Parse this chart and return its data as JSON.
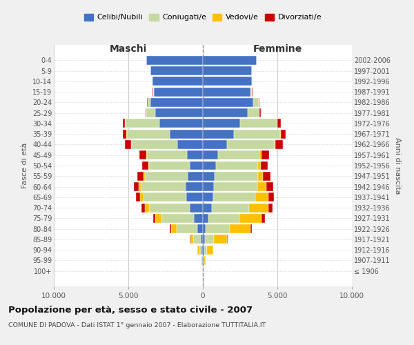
{
  "age_groups": [
    "100+",
    "95-99",
    "90-94",
    "85-89",
    "80-84",
    "75-79",
    "70-74",
    "65-69",
    "60-64",
    "55-59",
    "50-54",
    "45-49",
    "40-44",
    "35-39",
    "30-34",
    "25-29",
    "20-24",
    "15-19",
    "10-14",
    "5-9",
    "0-4"
  ],
  "birth_years": [
    "≤ 1906",
    "1907-1911",
    "1912-1916",
    "1917-1921",
    "1922-1926",
    "1927-1931",
    "1932-1936",
    "1937-1941",
    "1942-1946",
    "1947-1951",
    "1952-1956",
    "1957-1961",
    "1962-1966",
    "1967-1971",
    "1972-1976",
    "1977-1981",
    "1982-1986",
    "1987-1991",
    "1992-1996",
    "1997-2001",
    "2002-2006"
  ],
  "maschi": {
    "celibi": [
      20,
      60,
      100,
      150,
      350,
      600,
      900,
      1100,
      1150,
      1000,
      900,
      1050,
      1700,
      2200,
      2900,
      3200,
      3500,
      3300,
      3400,
      3500,
      3800
    ],
    "coniugati": [
      10,
      40,
      150,
      500,
      1400,
      2200,
      2700,
      2900,
      3000,
      2900,
      2700,
      2700,
      3100,
      2900,
      2300,
      600,
      200,
      50,
      20,
      10,
      5
    ],
    "vedovi": [
      5,
      30,
      100,
      200,
      400,
      400,
      300,
      200,
      150,
      100,
      80,
      50,
      30,
      20,
      10,
      5,
      5,
      0,
      0,
      0,
      0
    ],
    "divorziati": [
      2,
      5,
      10,
      20,
      80,
      150,
      200,
      280,
      350,
      400,
      400,
      450,
      400,
      250,
      150,
      50,
      30,
      10,
      5,
      0,
      0
    ]
  },
  "femmine": {
    "nubili": [
      20,
      60,
      100,
      130,
      200,
      350,
      600,
      700,
      750,
      800,
      900,
      1000,
      1600,
      2100,
      2500,
      3000,
      3400,
      3200,
      3300,
      3300,
      3600
    ],
    "coniugate": [
      10,
      40,
      200,
      600,
      1600,
      2100,
      2500,
      2800,
      2900,
      2900,
      2800,
      2800,
      3200,
      3100,
      2500,
      800,
      350,
      100,
      30,
      10,
      5
    ],
    "vedove": [
      20,
      100,
      400,
      900,
      1400,
      1500,
      1300,
      900,
      600,
      350,
      200,
      150,
      80,
      50,
      20,
      5,
      5,
      0,
      0,
      0,
      0
    ],
    "divorziate": [
      2,
      5,
      10,
      20,
      100,
      200,
      280,
      380,
      450,
      480,
      450,
      500,
      500,
      300,
      200,
      80,
      50,
      15,
      5,
      0,
      0
    ]
  },
  "colors": {
    "celibi": "#4472c4",
    "coniugati": "#c5d9a0",
    "vedovi": "#ffc000",
    "divorziati": "#cc0000"
  },
  "title": "Popolazione per età, sesso e stato civile - 2007",
  "subtitle": "COMUNE DI PADOVA - Dati ISTAT 1° gennaio 2007 - Elaborazione TUTTITALIA.IT",
  "xlabel_left": "Maschi",
  "xlabel_right": "Femmine",
  "ylabel_left": "Fasce di età",
  "ylabel_right": "Anni di nascita",
  "xlim": 10000,
  "xtick_labels": [
    "10.000",
    "5.000",
    "0",
    "5.000",
    "10.000"
  ],
  "legend_labels": [
    "Celibi/Nubili",
    "Coniugati/e",
    "Vedovi/e",
    "Divorziati/e"
  ],
  "bg_color": "#f0f0f0",
  "plot_bg_color": "#ffffff"
}
